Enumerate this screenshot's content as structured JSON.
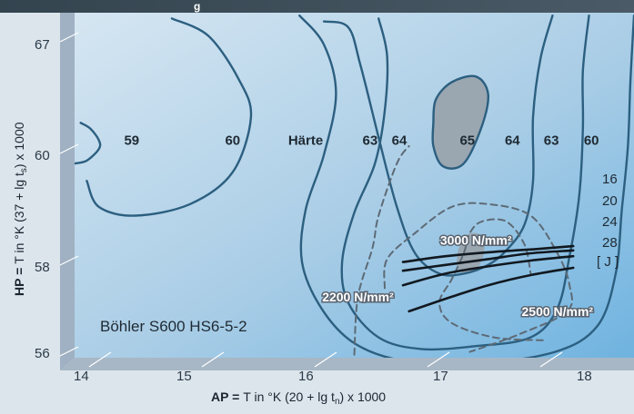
{
  "chart_data": {
    "type": "contour",
    "title_fragment": "g",
    "steel": "Böhler S600 HS6-5-2",
    "xlabel_bold": "AP =",
    "xlabel_rest": "T in °K (20 + lg t",
    "xlabel_sub": "n",
    "xlabel_end": ") x 1000",
    "ylabel_bold": "HP =",
    "ylabel_rest": "T in °K (37 + lg t",
    "ylabel_sub": "s",
    "ylabel_end": ") x 1000",
    "xlim": [
      13.75,
      18.35
    ],
    "ylim": [
      55.7,
      67.6
    ],
    "x_ticks": [
      "14",
      "15",
      "16",
      "17",
      "18"
    ],
    "x_tick_values": [
      14,
      15,
      16,
      17,
      18
    ],
    "y_ticks": [
      "56",
      "58",
      "60",
      "67"
    ],
    "hardness_labels": [
      {
        "text": "59",
        "x": 14.22,
        "y": 63.2
      },
      {
        "text": "60",
        "x": 15.05,
        "y": 63.2
      },
      {
        "text": "Härte",
        "x": 15.65,
        "y": 63.2
      },
      {
        "text": "63",
        "x": 16.18,
        "y": 63.2
      },
      {
        "text": "64",
        "x": 16.42,
        "y": 63.2
      },
      {
        "text": "65",
        "x": 16.98,
        "y": 63.2
      },
      {
        "text": "64",
        "x": 17.35,
        "y": 63.2
      },
      {
        "text": "63",
        "x": 17.67,
        "y": 63.2
      },
      {
        "text": "60",
        "x": 18.0,
        "y": 63.2
      }
    ],
    "energy_labels": [
      "16",
      "20",
      "24",
      "28",
      "[ J ]"
    ],
    "stress_labels": [
      {
        "text": "3000 N/mm²",
        "x": 17.05,
        "y": 59.75
      },
      {
        "text": "2200 N/mm²",
        "x": 16.08,
        "y": 57.8
      },
      {
        "text": "2500 N/mm²",
        "x": 17.72,
        "y": 57.3
      }
    ],
    "series": [
      {
        "kind": "hardness",
        "points": [
          [
            15.8,
            67.3
          ],
          [
            16.0,
            67.1
          ],
          [
            16.1,
            65.8
          ],
          [
            16.25,
            63.3
          ],
          [
            16.4,
            60.9
          ],
          [
            16.55,
            59.3
          ],
          [
            16.75,
            58.6
          ],
          [
            16.95,
            58.6
          ],
          [
            17.15,
            58.9
          ],
          [
            17.3,
            59.4
          ],
          [
            17.45,
            60.3
          ],
          [
            17.52,
            61.8
          ],
          [
            17.52,
            64.0
          ],
          [
            17.58,
            66.0
          ],
          [
            17.68,
            67.5
          ]
        ]
      },
      {
        "kind": "hardness",
        "points": [
          [
            16.25,
            67.4
          ],
          [
            16.32,
            66.1
          ],
          [
            16.3,
            64.2
          ],
          [
            16.22,
            62.4
          ],
          [
            16.05,
            60.7
          ],
          [
            15.95,
            59.0
          ],
          [
            16.0,
            57.6
          ],
          [
            16.25,
            56.4
          ],
          [
            16.6,
            56.0
          ],
          [
            17.05,
            56.1
          ],
          [
            17.5,
            56.4
          ],
          [
            17.72,
            57.4
          ],
          [
            17.82,
            59.2
          ],
          [
            17.9,
            61.3
          ],
          [
            17.93,
            63.6
          ],
          [
            17.93,
            65.6
          ],
          [
            17.98,
            67.5
          ]
        ]
      },
      {
        "kind": "hardness",
        "points": [
          [
            15.6,
            67.5
          ],
          [
            15.8,
            66.5
          ],
          [
            15.9,
            64.8
          ],
          [
            15.8,
            62.7
          ],
          [
            15.65,
            60.8
          ],
          [
            15.62,
            59.0
          ],
          [
            15.78,
            57.4
          ],
          [
            16.05,
            56.2
          ],
          [
            16.45,
            55.6
          ],
          [
            17.05,
            55.5
          ],
          [
            17.7,
            55.9
          ],
          [
            18.05,
            56.8
          ],
          [
            18.2,
            58.6
          ],
          [
            18.25,
            60.8
          ],
          [
            18.3,
            63.0
          ],
          [
            18.32,
            65.2
          ],
          [
            18.35,
            67.5
          ]
        ]
      },
      {
        "kind": "hardness",
        "points": [
          [
            14.55,
            67.4
          ],
          [
            14.85,
            66.8
          ],
          [
            15.1,
            65.3
          ],
          [
            15.2,
            64.0
          ],
          [
            15.05,
            62.1
          ],
          [
            14.7,
            61.0
          ],
          [
            14.25,
            60.6
          ],
          [
            13.95,
            60.9
          ],
          [
            13.85,
            61.8
          ]
        ]
      },
      {
        "kind": "hardness",
        "points": [
          [
            13.8,
            63.8
          ],
          [
            13.88,
            63.6
          ],
          [
            13.95,
            63.2
          ],
          [
            13.95,
            62.9
          ],
          [
            13.85,
            62.5
          ],
          [
            13.75,
            62.4
          ]
        ]
      },
      {
        "kind": "hardness_region",
        "label": "65",
        "points": [
          [
            16.7,
            63.8
          ],
          [
            16.72,
            64.6
          ],
          [
            16.85,
            65.2
          ],
          [
            17.05,
            65.4
          ],
          [
            17.15,
            64.8
          ],
          [
            17.1,
            63.7
          ],
          [
            16.95,
            62.4
          ],
          [
            16.78,
            62.3
          ],
          [
            16.7,
            63.0
          ],
          [
            16.7,
            63.8
          ]
        ]
      },
      {
        "kind": "stress_region",
        "label": "3000",
        "points": [
          [
            16.92,
            59.6
          ],
          [
            16.98,
            59.95
          ],
          [
            17.08,
            59.95
          ],
          [
            17.12,
            59.5
          ],
          [
            17.08,
            58.9
          ],
          [
            16.98,
            58.6
          ],
          [
            16.9,
            58.8
          ],
          [
            16.9,
            59.3
          ],
          [
            16.92,
            59.6
          ]
        ]
      },
      {
        "kind": "stress",
        "label": "2500",
        "points": [
          [
            17.6,
            56.3
          ],
          [
            17.2,
            56.4
          ],
          [
            16.85,
            56.9
          ],
          [
            16.75,
            57.6
          ],
          [
            16.85,
            58.4
          ],
          [
            16.95,
            59.3
          ],
          [
            17.0,
            60.0
          ],
          [
            17.1,
            60.4
          ],
          [
            17.3,
            60.4
          ],
          [
            17.45,
            59.6
          ],
          [
            17.5,
            58.6
          ]
        ]
      },
      {
        "kind": "stress",
        "label": "2200",
        "points": [
          [
            16.3,
            58.1
          ],
          [
            16.32,
            59.1
          ],
          [
            16.55,
            60.0
          ],
          [
            16.85,
            60.9
          ],
          [
            17.15,
            61.0
          ],
          [
            17.5,
            60.6
          ],
          [
            17.72,
            59.3
          ],
          [
            17.82,
            58.2
          ],
          [
            17.8,
            57.3
          ],
          [
            17.4,
            56.5
          ],
          [
            17.0,
            55.9
          ]
        ]
      },
      {
        "kind": "stress",
        "label": "",
        "points": [
          [
            16.05,
            55.8
          ],
          [
            16.08,
            57.8
          ],
          [
            16.2,
            59.5
          ],
          [
            16.25,
            60.6
          ],
          [
            16.4,
            62.4
          ],
          [
            16.5,
            63.0
          ]
        ]
      },
      {
        "kind": "energy",
        "label": "16",
        "points": [
          [
            16.45,
            59.0
          ],
          [
            16.8,
            59.2
          ],
          [
            17.2,
            59.35
          ],
          [
            17.55,
            59.45
          ],
          [
            17.85,
            59.55
          ]
        ]
      },
      {
        "kind": "energy",
        "label": "20",
        "points": [
          [
            16.45,
            58.7
          ],
          [
            16.8,
            58.9
          ],
          [
            17.15,
            59.1
          ],
          [
            17.5,
            59.3
          ],
          [
            17.85,
            59.4
          ]
        ]
      },
      {
        "kind": "energy",
        "label": "24",
        "points": [
          [
            16.45,
            58.2
          ],
          [
            16.8,
            58.6
          ],
          [
            17.15,
            58.85
          ],
          [
            17.5,
            59.05
          ],
          [
            17.85,
            59.2
          ]
        ]
      },
      {
        "kind": "energy",
        "label": "28",
        "points": [
          [
            16.5,
            57.3
          ],
          [
            16.85,
            57.8
          ],
          [
            17.15,
            58.2
          ],
          [
            17.5,
            58.55
          ],
          [
            17.85,
            58.8
          ]
        ]
      }
    ]
  }
}
